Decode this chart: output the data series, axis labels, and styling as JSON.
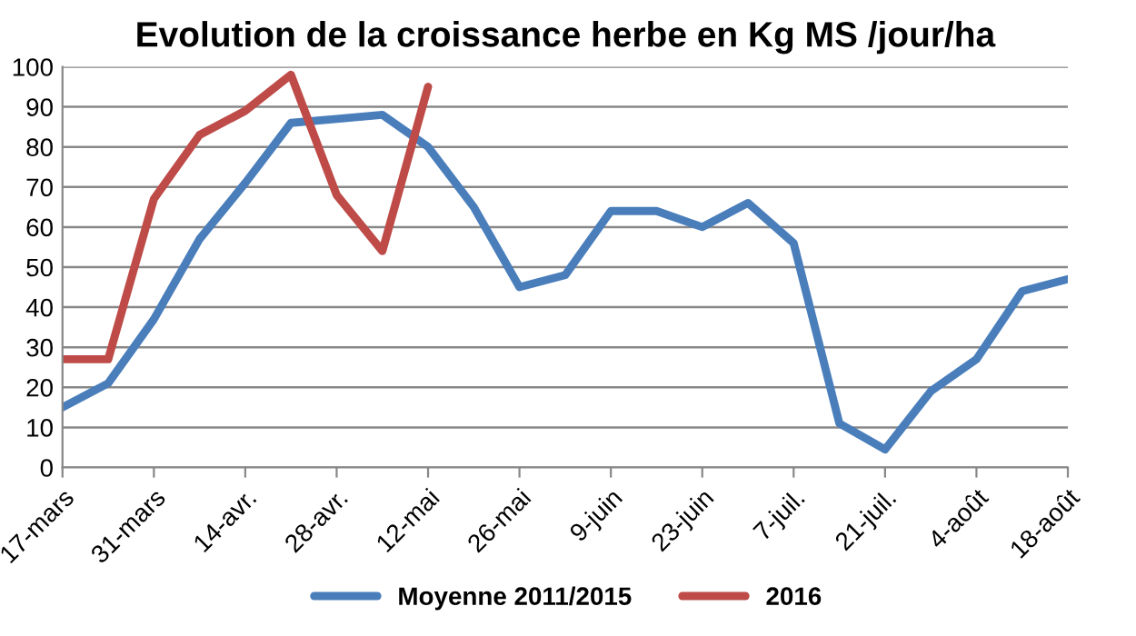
{
  "chart_data": {
    "type": "line",
    "title": "Evolution de la croissance herbe en Kg MS /jour/ha",
    "categories": [
      "17-mars",
      null,
      "31-mars",
      null,
      "14-avr.",
      null,
      "28-avr.",
      null,
      "12-mai",
      null,
      "26-mai",
      null,
      "9-juin",
      null,
      "23-juin",
      null,
      "7-juil.",
      null,
      "21-juil.",
      null,
      "4-août",
      null,
      "18-août"
    ],
    "series": [
      {
        "name": "Moyenne 2011/2015",
        "color": "#4a7ebb",
        "values": [
          15,
          21,
          37,
          57,
          71,
          86,
          87,
          88,
          80,
          65,
          45,
          48,
          64,
          64,
          60,
          66,
          56,
          11,
          4.5,
          19,
          27,
          44,
          47
        ]
      },
      {
        "name": "2016",
        "color": "#be4b48",
        "values": [
          27,
          27,
          67,
          83,
          89,
          98,
          68,
          54,
          95,
          null,
          null,
          null,
          null,
          null,
          null,
          null,
          null,
          null,
          null,
          null,
          null,
          null,
          null
        ]
      }
    ],
    "ylim": [
      0,
      100
    ],
    "yticks": [
      0,
      10,
      20,
      30,
      40,
      50,
      60,
      70,
      80,
      90,
      100
    ],
    "grid": "y",
    "legend": "bottom",
    "marker": "none",
    "line_style": "solid"
  }
}
